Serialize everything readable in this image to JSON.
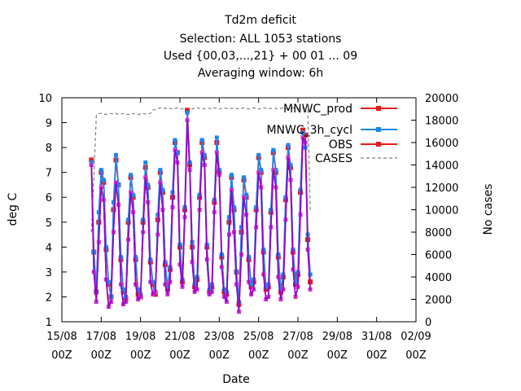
{
  "chart_data": {
    "type": "line",
    "title_lines": [
      "Td2m deficit",
      "Selection: ALL    1053 stations",
      "Used {00,03,...,21} + 00 01 ... 09",
      "Averaging window:  6h"
    ],
    "xlabel": "Date",
    "ylabel": "deg C",
    "y2label": "No cases",
    "xlim": [
      "2024-08-15 00:00",
      "2024-09-02 00:00"
    ],
    "ylim": [
      1,
      10
    ],
    "y2lim": [
      0,
      20000
    ],
    "x_ticks": [
      {
        "top": "15/08",
        "bottom": "00Z"
      },
      {
        "top": "17/08",
        "bottom": "00Z"
      },
      {
        "top": "19/08",
        "bottom": "00Z"
      },
      {
        "top": "21/08",
        "bottom": "00Z"
      },
      {
        "top": "23/08",
        "bottom": "00Z"
      },
      {
        "top": "25/08",
        "bottom": "00Z"
      },
      {
        "top": "27/08",
        "bottom": "00Z"
      },
      {
        "top": "29/08",
        "bottom": "00Z"
      },
      {
        "top": "31/08",
        "bottom": "00Z"
      },
      {
        "top": "02/09",
        "bottom": "00Z"
      }
    ],
    "y_ticks": [
      "1",
      "2",
      "3",
      "4",
      "5",
      "6",
      "7",
      "8",
      "9",
      "10"
    ],
    "y2_ticks": [
      "0",
      "2000",
      "4000",
      "6000",
      "8000",
      "10000",
      "12000",
      "14000",
      "16000",
      "18000",
      "20000"
    ],
    "grid": false,
    "legend_placement": "top-right",
    "x_start": "2024-08-16 12:00",
    "x_step_hours": 3,
    "series": [
      {
        "name": "MNWC_prod",
        "color": "#e41a1c",
        "marker": "square-point",
        "axis": "y1",
        "values": [
          7.5,
          3.8,
          2.2,
          5.0,
          7.0,
          6.6,
          3.9,
          2.5,
          2.0,
          5.5,
          7.5,
          6.5,
          3.5,
          2.2,
          1.9,
          5.0,
          6.8,
          6.0,
          3.5,
          2.1,
          2.0,
          5.0,
          7.2,
          6.4,
          3.4,
          2.5,
          2.1,
          5.1,
          7.0,
          6.2,
          3.3,
          2.3,
          3.1,
          6.0,
          8.2,
          7.8,
          4.0,
          2.6,
          5.5,
          9.5,
          7.3,
          4.0,
          2.4,
          2.7,
          6.0,
          8.2,
          7.6,
          4.0,
          2.2,
          2.4,
          5.8,
          8.2,
          7.0,
          3.6,
          2.2,
          2.1,
          5.0,
          6.8,
          5.5,
          3.0,
          1.7,
          4.6,
          6.7,
          6.0,
          3.5,
          2.4,
          2.6,
          5.5,
          7.6,
          7.0,
          3.8,
          2.3,
          2.4,
          5.4,
          7.8,
          7.0,
          3.6,
          2.2,
          2.8,
          5.9,
          8.0,
          7.2,
          3.8,
          2.5,
          2.9,
          6.2,
          8.7,
          8.5,
          4.3,
          2.6
        ]
      },
      {
        "name": "MNWC_3h_cycl",
        "color": "#1c86ee",
        "marker": "square",
        "axis": "y1",
        "values": [
          7.4,
          3.8,
          2.2,
          5.4,
          7.1,
          6.7,
          4.0,
          2.6,
          2.0,
          5.8,
          7.7,
          6.5,
          3.6,
          2.3,
          2.0,
          5.1,
          6.9,
          6.1,
          3.6,
          2.3,
          2.1,
          5.1,
          7.4,
          6.5,
          3.5,
          2.6,
          2.2,
          5.3,
          7.1,
          6.3,
          3.4,
          2.4,
          3.2,
          6.2,
          8.3,
          7.8,
          4.1,
          2.7,
          5.6,
          9.4,
          7.4,
          4.2,
          2.5,
          2.8,
          6.1,
          8.3,
          7.7,
          4.1,
          2.3,
          2.5,
          5.9,
          8.4,
          7.1,
          3.7,
          2.3,
          2.2,
          5.2,
          6.9,
          5.6,
          3.0,
          1.8,
          4.8,
          6.8,
          6.1,
          3.6,
          2.5,
          2.7,
          5.6,
          7.7,
          7.1,
          3.9,
          2.4,
          2.5,
          5.5,
          7.9,
          7.1,
          3.7,
          2.3,
          2.9,
          6.0,
          8.1,
          7.3,
          3.9,
          2.6,
          3.0,
          6.3,
          8.6,
          8.0,
          4.5,
          2.9
        ]
      },
      {
        "name": "OBS",
        "color": "#e41a1c",
        "marker": "square",
        "axis": "y1",
        "values": [
          7.3,
          3.0,
          1.8,
          4.2,
          6.4,
          5.9,
          2.7,
          1.6,
          1.8,
          4.6,
          6.6,
          5.7,
          2.5,
          1.7,
          1.8,
          4.3,
          6.2,
          5.4,
          2.5,
          1.9,
          2.0,
          4.6,
          6.8,
          5.8,
          2.6,
          2.1,
          2.2,
          4.5,
          6.6,
          5.5,
          2.5,
          2.1,
          2.6,
          5.6,
          7.9,
          7.4,
          3.3,
          2.4,
          5.2,
          9.1,
          7.1,
          3.4,
          2.2,
          2.3,
          5.5,
          7.8,
          7.3,
          3.5,
          2.1,
          2.2,
          5.4,
          7.8,
          6.9,
          3.2,
          2.0,
          1.8,
          4.5,
          6.3,
          4.6,
          2.5,
          1.4,
          3.7,
          6.0,
          5.3,
          2.6,
          2.1,
          2.3,
          4.8,
          7.0,
          6.4,
          2.9,
          1.9,
          2.0,
          4.8,
          7.1,
          6.4,
          2.8,
          1.9,
          2.3,
          5.1,
          7.6,
          6.7,
          3.1,
          2.0,
          2.4,
          5.3,
          8.4,
          8.2,
          3.9,
          2.3
        ]
      },
      {
        "name": "CASES",
        "color": "#808080",
        "marker": "none",
        "axis": "y2",
        "dashed": true,
        "values": [
          8000,
          13000,
          18400,
          18600,
          18600,
          18550,
          18500,
          18550,
          18600,
          18550,
          18600,
          18500,
          18550,
          18600,
          18550,
          18500,
          18550,
          18600,
          18550,
          18500,
          18550,
          18600,
          18550,
          18600,
          18600,
          18900,
          18950,
          19000,
          19100,
          19100,
          19050,
          19100,
          19050,
          19000,
          19050,
          19100,
          19050,
          19000,
          19050,
          19000,
          19050,
          19000,
          19050,
          19100,
          19050,
          19000,
          19050,
          19100,
          19050,
          19000,
          19100,
          19050,
          19000,
          19050,
          19100,
          19050,
          19000,
          19050,
          19100,
          19050,
          19000,
          19050,
          19100,
          19050,
          19000,
          19050,
          19100,
          19050,
          19000,
          19050,
          19100,
          19050,
          19000,
          19050,
          19100,
          19050,
          19000,
          19050,
          19100,
          19050,
          19000,
          19050,
          19100,
          19050,
          19000,
          19050,
          19100,
          19000,
          18900,
          10000
        ]
      }
    ]
  }
}
